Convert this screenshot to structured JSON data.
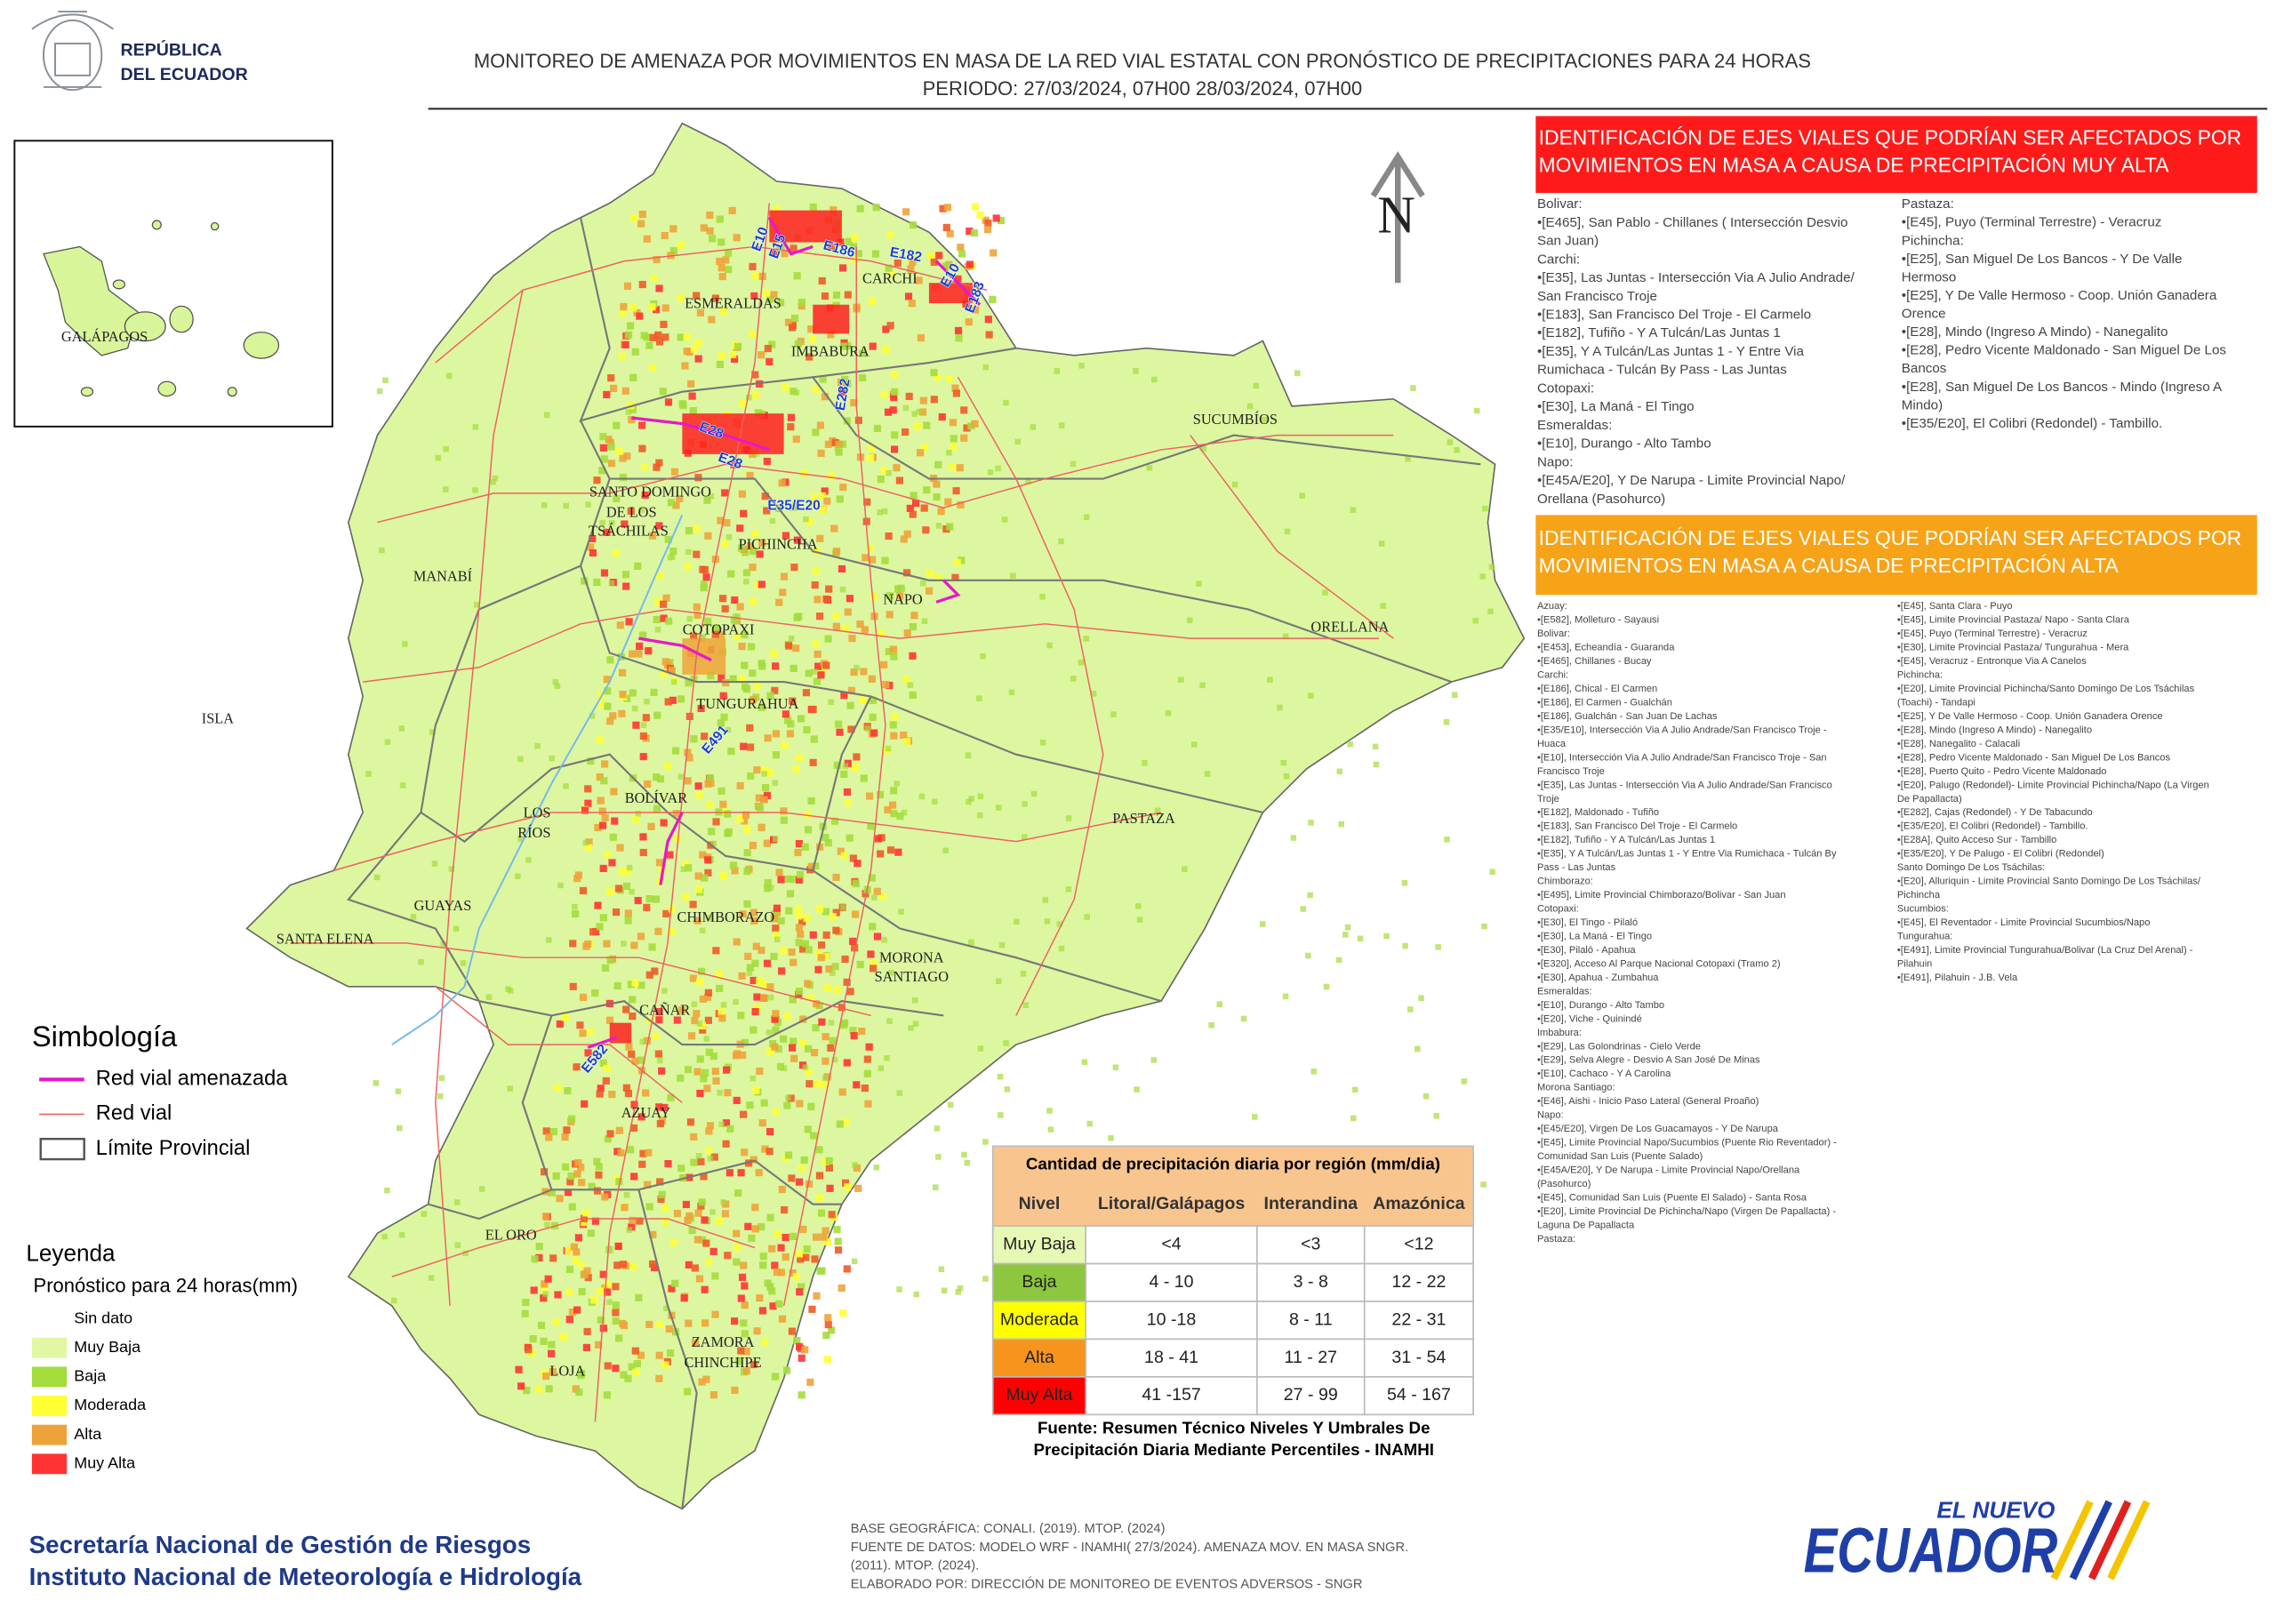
{
  "header": {
    "logo_lines": [
      "REPÚBLICA",
      "DEL ECUADOR"
    ],
    "title": "MONITOREO DE AMENAZA POR MOVIMIENTOS EN MASA DE LA RED VIAL  ESTATAL  CON PRONÓSTICO  DE  PRECIPITACIONES PARA 24 HORAS",
    "period": "PERIODO: 27/03/2024, 07H00 28/03/2024, 07H00"
  },
  "map": {
    "north": "N",
    "inset_label": "GALÁPAGOS",
    "province_labels": [
      "ESMERALDAS",
      "CARCHI",
      "IMBABURA",
      "SUCUMBÍOS",
      "SANTO DOMINGO",
      "DE LOS",
      "TSÁCHILAS",
      "PICHINCHA",
      "MANABÍ",
      "NAPO",
      "ORELLANA",
      "COTOPAXI",
      "ISLA",
      "TUNGURAHUA",
      "BOLÍVAR",
      "LOS",
      "RÍOS",
      "PASTAZA",
      "GUAYAS",
      "SANTA ELENA",
      "CHIMBORAZO",
      "MORONA",
      "SANTIAGO",
      "CAÑAR",
      "AZUAY",
      "EL ORO",
      "ZAMORA",
      "CHINCHIPE",
      "LOJA"
    ],
    "road_labels": [
      "E10",
      "E15",
      "E186",
      "E182",
      "E10",
      "E183",
      "E28",
      "E28",
      "E282",
      "E35/E20",
      "E491",
      "E582"
    ]
  },
  "simbologia": {
    "title": "Simbología",
    "items": [
      {
        "label": "Red vial amenazada",
        "color": "#e619c8"
      },
      {
        "label": "Red vial",
        "color": "#f06060"
      },
      {
        "label": "Límite Provincial",
        "color": "#555555"
      }
    ]
  },
  "leyenda": {
    "title": "Leyenda",
    "subtitle": "Pronóstico para 24 horas(mm)",
    "items": [
      {
        "label": "Sin dato"
      },
      {
        "label": "Muy Baja",
        "color": "#e2f7a3"
      },
      {
        "label": "Baja",
        "color": "#a4dc3c"
      },
      {
        "label": "Moderada",
        "color": "#ffff33"
      },
      {
        "label": "Alta",
        "color": "#eea33a"
      },
      {
        "label": "Muy Alta",
        "color": "#ff3333"
      }
    ]
  },
  "table": {
    "title": "Cantidad de precipitación diaria por región (mm/dia)",
    "headers": [
      "Nivel",
      "Litoral/Galápagos",
      "Interandina",
      "Amazónica"
    ],
    "rows": [
      [
        "Muy Baja",
        "<4",
        "<3",
        "<12"
      ],
      [
        "Baja",
        "4 - 10",
        "3 - 8",
        "12 - 22"
      ],
      [
        "Moderada",
        "10 -18",
        "8 - 11",
        "22 - 31"
      ],
      [
        "Alta",
        "18 - 41",
        "11 - 27",
        "31 - 54"
      ],
      [
        "Muy Alta",
        "41 -157",
        "27 - 99",
        "54 - 167"
      ]
    ],
    "row_colors": [
      "#e6f9b4",
      "#8dc63f",
      "#ffff00",
      "#f7941d",
      "#ff0000"
    ],
    "source": [
      "Fuente: Resumen Técnico Niveles Y Umbrales De",
      "Precipitación Diaria Mediante Percentiles - INAMHI"
    ]
  },
  "panel_muy_alta": {
    "title": [
      "IDENTIFICACIÓN DE EJES VIALES QUE PODRÍAN SER AFECTADOS POR",
      "MOVIMIENTOS EN MASA A CAUSA DE PRECIPITACIÓN MUY ALTA"
    ],
    "col1": [
      "Bolivar:",
      "•[E465], San Pablo - Chillanes ( Intersección Desvio",
      "San Juan)",
      "Carchi:",
      "•[E35], Las Juntas - Intersección Via A Julio Andrade/",
      "San Francisco Troje",
      "•[E183], San Francisco Del Troje - El Carmelo",
      "•[E182], Tufiño - Y A Tulcán/Las Juntas 1",
      "•[E35], Y A Tulcán/Las Juntas 1 - Y Entre Via",
      "Rumichaca - Tulcán By Pass - Las Juntas",
      "Cotopaxi:",
      "•[E30], La Maná - El Tingo",
      "Esmeraldas:",
      "•[E10], Durango - Alto Tambo",
      "Napo:",
      "•[E45A/E20], Y De Narupa - Limite Provincial Napo/",
      "Orellana (Pasohurco)"
    ],
    "col2": [
      "Pastaza:",
      "•[E45], Puyo (Terminal Terrestre) - Veracruz",
      "Pichincha:",
      "•[E25], San Miguel De Los Bancos - Y De Valle",
      "Hermoso",
      "•[E25], Y De Valle Hermoso - Coop. Unión Ganadera",
      "Orence",
      "•[E28], Mindo (Ingreso A Mindo) - Nanegalito",
      "•[E28], Pedro Vicente Maldonado - San Miguel De Los",
      "Bancos",
      "•[E28], San Miguel De Los Bancos - Mindo (Ingreso A",
      "Mindo)",
      "•[E35/E20], El Colibri (Redondel) - Tambillo."
    ]
  },
  "panel_alta": {
    "title": [
      "IDENTIFICACIÓN DE EJES VIALES QUE PODRÍAN SER AFECTADOS POR",
      "MOVIMIENTOS EN MASA A CAUSA DE PRECIPITACIÓN  ALTA"
    ],
    "col1": [
      "Azuay:",
      "•[E582], Molleturo - Sayausi",
      "Bolivar:",
      "•[E453], Echeandía - Guaranda",
      "•[E465], Chillanes - Bucay",
      "Carchi:",
      "•[E186], Chical - El Carmen",
      "•[E186], El Carmen - Gualchán",
      "•[E186], Gualchán - San Juan De Lachas",
      "•[E35/E10], Intersección Via A Julio Andrade/San Francisco Troje -",
      "Huaca",
      "•[E10], Intersección Via A Julio Andrade/San Francisco Troje - San",
      "Francisco Troje",
      "•[E35], Las Juntas - Intersección Via A Julio Andrade/San Francisco",
      "Troje",
      "•[E182], Maldonado - Tufiño",
      "•[E183], San Francisco Del Troje - El Carmelo",
      "•[E182], Tufiño - Y A Tulcán/Las Juntas 1",
      "•[E35], Y A Tulcán/Las Juntas 1 - Y Entre Via Rumichaca - Tulcán By",
      "Pass - Las Juntas",
      "Chimborazo:",
      "•[E495], Limite Provincial Chimborazo/Bolivar - San Juan",
      "Cotopaxi:",
      "•[E30], El Tingo - Pilaló",
      "•[E30], La Maná - El Tingo",
      "•[E30], Pilaló - Apahua",
      "•[E320], Acceso Al Parque Nacional Cotopaxi (Tramo 2)",
      "•[E30], Apahua - Zumbahua",
      "Esmeraldas:",
      "•[E10], Durango - Alto Tambo",
      "•[E20], Viche - Quinindé",
      "Imbabura:",
      "•[E29], Las Golondrinas - Cielo Verde",
      "•[E29], Selva Alegre - Desvio A San José De Minas",
      "•[E10], Cachaco - Y A Carolina",
      "Morona Santiago:",
      "•[E46], Aishi - Inicio Paso Lateral (General Proaño)",
      "Napo:",
      "•[E45/E20], Virgen De Los Guacamayos - Y De Narupa",
      "•[E45], Limite Provincial Napo/Sucumbios (Puente Rio Reventador) -",
      "Comunidad San Luis (Puente Salado)",
      "•[E45A/E20], Y De Narupa - Limite Provincial Napo/Orellana",
      "(Pasohurco)",
      "•[E45], Comunidad San Luis (Puente El Salado) - Santa Rosa",
      "•[E20], Limite Provincial De Pichincha/Napo (Virgen De Papallacta) -",
      "Laguna De Papallacta",
      "Pastaza:"
    ],
    "col2": [
      "•[E45], Santa Clara - Puyo",
      "•[E45], Limite Provincial Pastaza/ Napo - Santa Clara",
      "•[E45], Puyo (Terminal Terrestre) - Veracruz",
      "•[E30], Limite Provincial Pastaza/ Tungurahua - Mera",
      "•[E45], Veracruz - Entronque Via A Canelos",
      "Pichincha:",
      "•[E20], Limite Provincial Pichincha/Santo Domingo De Los Tsáchilas",
      "(Toachi) - Tandapi",
      "•[E25], Y De Valle Hermoso - Coop. Unión Ganadera Orence",
      "•[E28], Mindo (Ingreso A Mindo) - Nanegalito",
      "•[E28], Nanegalito - Calacali",
      "•[E28], Pedro Vicente Maldonado - San Miguel De Los Bancos",
      "•[E28], Puerto Quito - Pedro Vicente Maldonado",
      "•[E20], Palugo (Redondel)- Limite Provincial Pichincha/Napo (La Virgen",
      "De Papallacta)",
      "•[E282], Cajas (Redondel) - Y De Tabacundo",
      "•[E35/E20], El Colibri (Redondel) - Tambillo.",
      "•[E28A], Quito Acceso Sur - Tambillo",
      "•[E35/E20], Y De Palugo - El Colibri (Redondel)",
      "Santo Domingo De Los Tsáchilas:",
      "•[E20], Alluriquin - Limite Provincial Santo Domingo De Los Tsáchilas/",
      "Pichincha",
      "Sucumbios:",
      "•[E45], El Reventador - Limite Provincial Sucumbios/Napo",
      "Tungurahua:",
      "•[E491], Limite Provincial Tungurahua/Bolivar (La Cruz Del Arenal) -",
      "Pilahuin",
      "•[E491], Pilahuin - J.B. Vela"
    ]
  },
  "footer": {
    "organizations": [
      "Secretaría Nacional de Gestión de Riesgos",
      "Instituto Nacional de Meteorología e Hidrología"
    ],
    "notes": [
      "BASE GEOGRÁFICA: CONALI. (2019). MTOP. (2024)",
      "FUENTE DE DATOS: MODELO WRF - INAMHI( 27/3/2024).  AMENAZA MOV. EN MASA SNGR.",
      "(2011). MTOP. (2024).",
      "ELABORADO POR: DIRECCIÓN DE MONITOREO DE EVENTOS ADVERSOS - SNGR"
    ],
    "logo_small": "EL NUEVO",
    "logo_big": "ECUADOR"
  }
}
